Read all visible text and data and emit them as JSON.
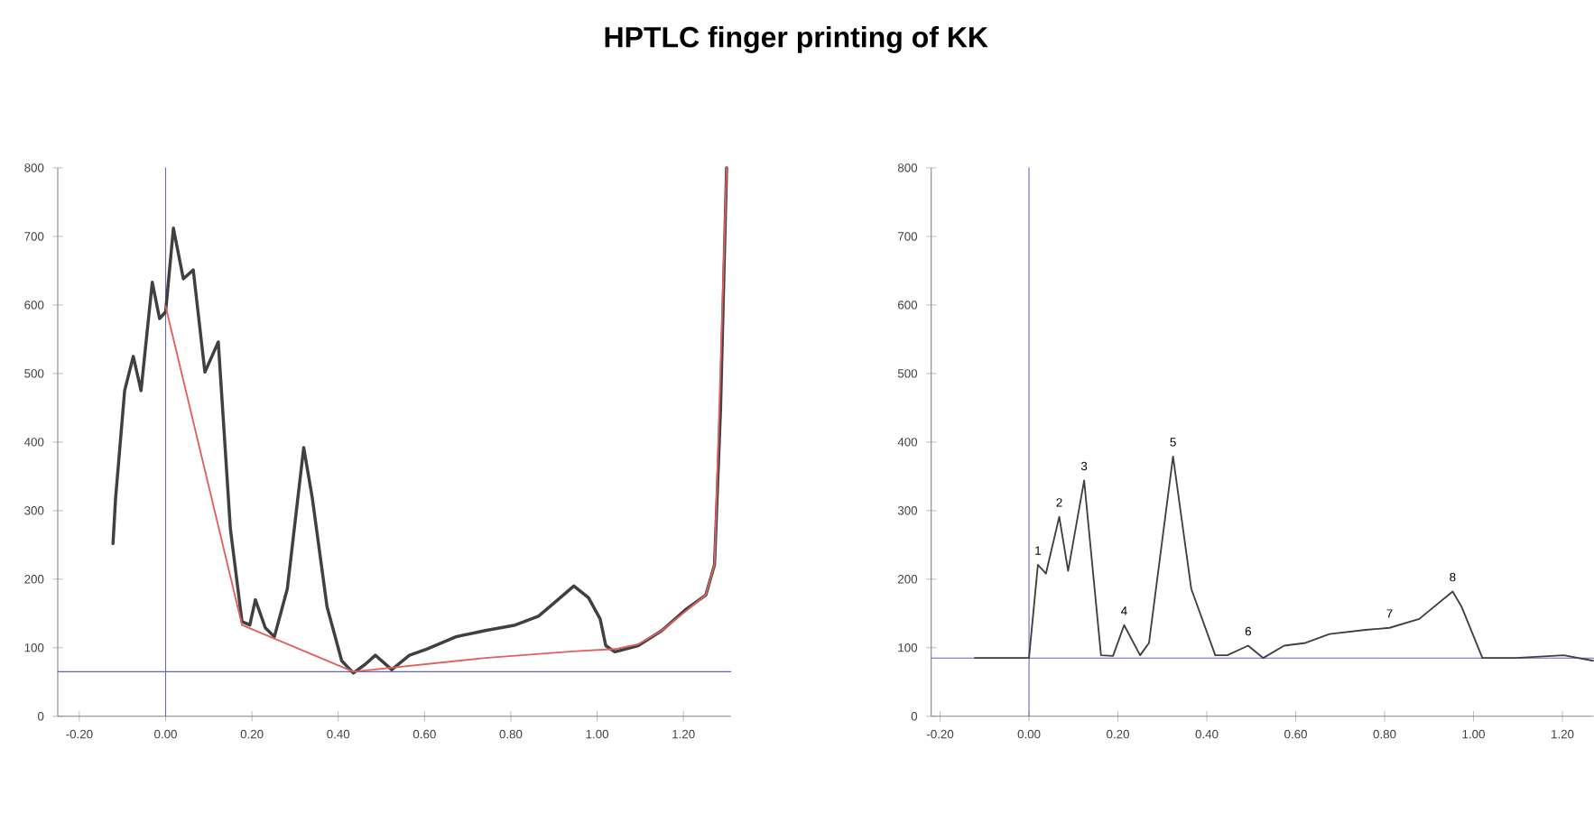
{
  "chart_data": [
    {
      "type": "line",
      "title": "HPTLC finger printing of KK",
      "xlim": [
        -0.25,
        1.31
      ],
      "ylim": [
        0,
        800
      ],
      "xticks": [
        {
          "value": -0.2,
          "label": "-0.20"
        },
        {
          "value": 0,
          "label": "0.00"
        },
        {
          "value": 0.2,
          "label": "0.20"
        },
        {
          "value": 0.4,
          "label": "0.40"
        },
        {
          "value": 0.6,
          "label": "0.60"
        },
        {
          "value": 0.8,
          "label": "0.80"
        },
        {
          "value": 1.0,
          "label": "1.00"
        },
        {
          "value": 1.2,
          "label": "1.20"
        }
      ],
      "yticks": [
        0,
        100,
        200,
        300,
        400,
        500,
        600,
        700,
        800
      ],
      "marker": "none",
      "line_style": "solid",
      "series": [
        {
          "color": "#404040",
          "x": [
            -0.122,
            -0.116,
            -0.095,
            -0.075,
            -0.057,
            -0.031,
            -0.014,
            0.0,
            0.018,
            0.041,
            0.064,
            0.091,
            0.122,
            0.15,
            0.177,
            0.195,
            0.208,
            0.231,
            0.252,
            0.282,
            0.32,
            0.34,
            0.374,
            0.408,
            0.435,
            0.463,
            0.486,
            0.524,
            0.565,
            0.605,
            0.673,
            0.741,
            0.81,
            0.864,
            0.898,
            0.946,
            0.98,
            1.007,
            1.02,
            1.041,
            1.095,
            1.15,
            1.204,
            1.252,
            1.272,
            1.286,
            1.3
          ],
          "values": [
            252,
            318,
            475,
            525,
            475,
            633,
            580,
            590,
            712,
            638,
            651,
            502,
            546,
            274,
            138,
            133,
            170,
            129,
            116,
            186,
            392,
            318,
            160,
            81,
            63,
            76,
            89,
            68,
            89,
            98,
            116,
            125,
            133,
            146,
            164,
            190,
            173,
            142,
            103,
            94,
            103,
            125,
            155,
            177,
            221,
            449,
            800
          ]
        },
        {
          "color": "#e06060",
          "x": [
            0.0,
            0.177,
            0.435,
            0.741,
            0.95,
            1.041,
            1.095,
            1.15,
            1.252,
            1.272,
            1.3
          ],
          "values": [
            598,
            133,
            65,
            85,
            95,
            98,
            105,
            125,
            177,
            221,
            800
          ]
        }
      ],
      "ref_lines": [
        {
          "axis": "x",
          "value": 0,
          "color": "#6060d0"
        },
        {
          "axis": "y",
          "value": 65,
          "color": "#6060d0"
        }
      ]
    },
    {
      "type": "line",
      "xlim": [
        -0.22,
        1.27
      ],
      "ylim": [
        0,
        800
      ],
      "xticks": [
        {
          "value": -0.2,
          "label": "-0.20"
        },
        {
          "value": 0,
          "label": "0.00"
        },
        {
          "value": 0.2,
          "label": "0.20"
        },
        {
          "value": 0.4,
          "label": "0.40"
        },
        {
          "value": 0.6,
          "label": "0.60"
        },
        {
          "value": 0.8,
          "label": "0.80"
        },
        {
          "value": 1.0,
          "label": "1.00"
        },
        {
          "value": 1.2,
          "label": "1.20"
        }
      ],
      "yticks": [
        0,
        100,
        200,
        300,
        400,
        500,
        600,
        700,
        800
      ],
      "marker": "none",
      "line_style": "solid",
      "series": [
        {
          "color": "#404040",
          "x": [
            -0.122,
            0.0,
            0.02,
            0.038,
            0.068,
            0.088,
            0.124,
            0.162,
            0.189,
            0.214,
            0.25,
            0.27,
            0.324,
            0.365,
            0.419,
            0.446,
            0.493,
            0.527,
            0.574,
            0.622,
            0.676,
            0.757,
            0.811,
            0.878,
            0.953,
            0.973,
            1.02,
            1.095,
            1.203,
            1.269
          ],
          "values": [
            85,
            85,
            221,
            208,
            291,
            212,
            344,
            89,
            88,
            133,
            89,
            107,
            379,
            186,
            89,
            89,
            103,
            85,
            103,
            107,
            120,
            126,
            129,
            142,
            182,
            160,
            85,
            85,
            89,
            81
          ]
        }
      ],
      "ref_lines": [
        {
          "axis": "x",
          "value": 0,
          "color": "#6060d0"
        },
        {
          "axis": "y",
          "value": 85,
          "color": "#6060d0"
        }
      ],
      "annotations": [
        {
          "text": "1",
          "x": 0.02,
          "y": 221
        },
        {
          "text": "2",
          "x": 0.068,
          "y": 291
        },
        {
          "text": "3",
          "x": 0.124,
          "y": 344
        },
        {
          "text": "4",
          "x": 0.214,
          "y": 133
        },
        {
          "text": "5",
          "x": 0.324,
          "y": 379
        },
        {
          "text": "6",
          "x": 0.493,
          "y": 103
        },
        {
          "text": "7",
          "x": 0.811,
          "y": 129
        },
        {
          "text": "8",
          "x": 0.953,
          "y": 182
        }
      ]
    }
  ]
}
